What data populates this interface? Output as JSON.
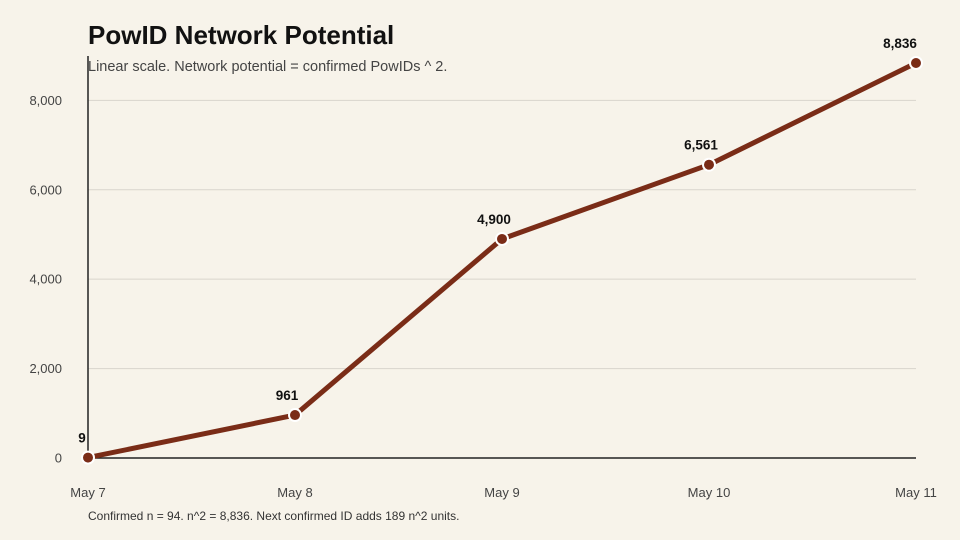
{
  "title": "PowID Network Potential",
  "subtitle": "Linear scale. Network potential = confirmed PowIDs ^ 2.",
  "footnote": "Confirmed n = 94. n^2 = 8,836. Next confirmed ID adds 189 n^2 units.",
  "colors": {
    "line": "#7a2c17",
    "grid": "#d9d5cc",
    "axis": "#222222",
    "background": "#f7f3ea"
  },
  "chart_data": {
    "type": "line",
    "title": "PowID Network Potential",
    "subtitle": "Linear scale. Network potential = confirmed PowIDs ^ 2.",
    "xlabel": "",
    "ylabel": "",
    "categories": [
      "May 7",
      "May 8",
      "May 9",
      "May 10",
      "May 11"
    ],
    "values": [
      9,
      961,
      4900,
      6561,
      8836
    ],
    "data_labels": [
      "9",
      "961",
      "4,900",
      "6,561",
      "8,836"
    ],
    "ylim": [
      0,
      8836
    ],
    "yticks": [
      0,
      2000,
      4000,
      6000,
      8000
    ],
    "ytick_labels": [
      "0",
      "2,000",
      "4,000",
      "6,000",
      "8,000"
    ],
    "grid": true,
    "legend": "none"
  }
}
